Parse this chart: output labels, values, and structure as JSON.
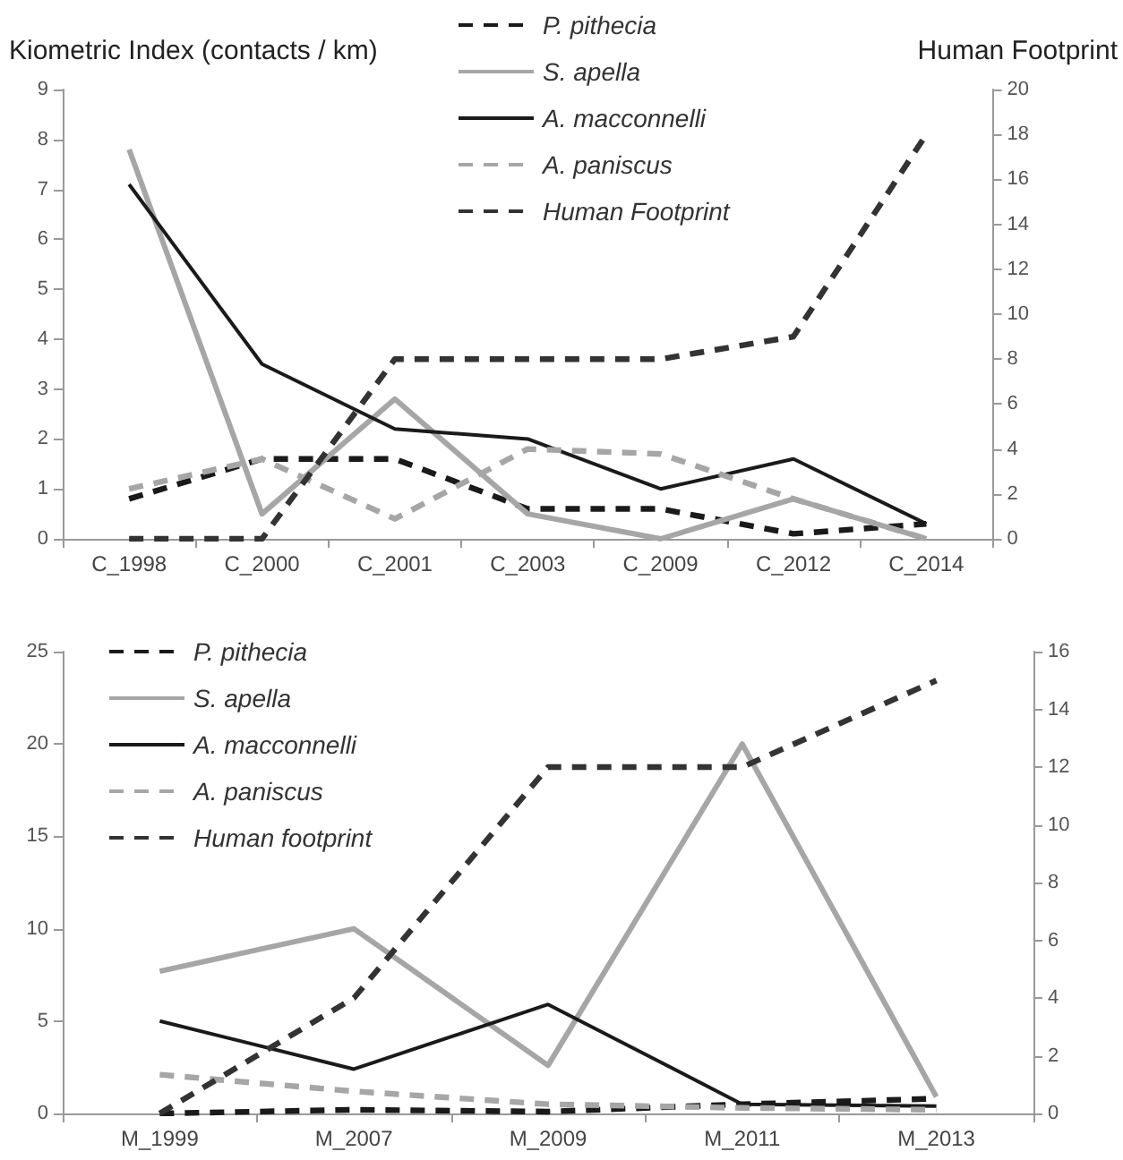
{
  "chart_data": [
    {
      "type": "line",
      "ylabel": "Kiometric Index (contacts / km)",
      "y2label": "Human Footprint",
      "categories": [
        "C_1998",
        "C_2000",
        "C_2001",
        "C_2003",
        "C_2009",
        "C_2012",
        "C_2014"
      ],
      "series": [
        {
          "name": "P. pithecia",
          "color": "#1a1a1a",
          "line_style": "dashed",
          "values": [
            0.8,
            1.6,
            1.6,
            0.6,
            0.6,
            0.1,
            0.3
          ]
        },
        {
          "name": "S. apella",
          "color": "#a6a6a6",
          "line_style": "solid",
          "values": [
            7.8,
            0.5,
            2.8,
            0.5,
            0,
            0.8,
            0
          ]
        },
        {
          "name": "A. macconnelli",
          "color": "#1a1a1a",
          "line_style": "solid",
          "values": [
            7.1,
            3.5,
            2.2,
            2.0,
            1.0,
            1.6,
            0.3
          ]
        },
        {
          "name": "A. paniscus",
          "color": "#a6a6a6",
          "line_style": "dashed",
          "values": [
            1.0,
            1.6,
            0.4,
            1.8,
            1.7,
            0.8,
            0
          ]
        },
        {
          "name": "Human Footprint",
          "color": "#333333",
          "line_style": "dashed",
          "axis": "y2",
          "values": [
            0,
            0,
            8,
            8,
            8,
            9,
            18
          ]
        }
      ],
      "ylim": [
        0,
        9
      ],
      "yticks": [
        0,
        1,
        2,
        3,
        4,
        5,
        6,
        7,
        8,
        9
      ],
      "y2lim": [
        0,
        20
      ],
      "y2ticks": [
        0,
        2,
        4,
        6,
        8,
        10,
        12,
        14,
        16,
        18,
        20
      ],
      "grid": false,
      "legend": "top",
      "marker": "none"
    },
    {
      "type": "line",
      "categories": [
        "M_1999",
        "M_2007",
        "M_2009",
        "M_2011",
        "M_2013"
      ],
      "series": [
        {
          "name": "P. pithecia",
          "color": "#1a1a1a",
          "line_style": "dashed",
          "values": [
            0,
            0.2,
            0.1,
            0.5,
            0.8
          ]
        },
        {
          "name": "S. apella",
          "color": "#a6a6a6",
          "line_style": "solid",
          "values": [
            7.7,
            10,
            2.6,
            20,
            0.9
          ]
        },
        {
          "name": "A. macconnelli",
          "color": "#1a1a1a",
          "line_style": "solid",
          "values": [
            5,
            2.4,
            5.9,
            0.5,
            0.4
          ]
        },
        {
          "name": "A. paniscus",
          "color": "#a6a6a6",
          "line_style": "dashed",
          "values": [
            2.1,
            1.2,
            0.5,
            0.3,
            0.2
          ]
        },
        {
          "name": "Human footprint",
          "color": "#333333",
          "line_style": "dashed",
          "axis": "y2",
          "values": [
            0,
            4,
            12,
            12,
            15
          ]
        }
      ],
      "ylim": [
        0,
        25
      ],
      "yticks": [
        0,
        5,
        10,
        15,
        20,
        25
      ],
      "y2lim": [
        0,
        16
      ],
      "y2ticks": [
        0,
        2,
        4,
        6,
        8,
        10,
        12,
        14,
        16
      ],
      "grid": false,
      "legend": "top left",
      "marker": "none"
    }
  ]
}
